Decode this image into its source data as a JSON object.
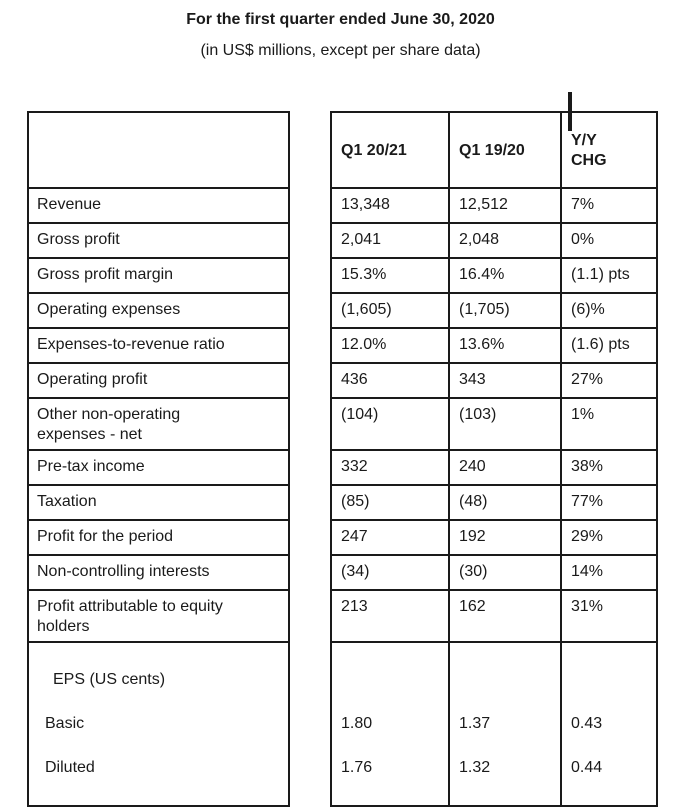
{
  "title": "For the first quarter ended June 30, 2020",
  "subtitle": "(in US$ millions, except per share data)",
  "table": {
    "column_headers": [
      "Q1 20/21",
      "Q1 19/20",
      "Y/Y\nCHG"
    ],
    "header_cursor_mark": "|",
    "rows": [
      {
        "label": "Revenue",
        "q1_2021": "13,348",
        "q1_1920": "12,512",
        "yy_chg": "7%"
      },
      {
        "label": "Gross profit",
        "q1_2021": "2,041",
        "q1_1920": "2,048",
        "yy_chg": "0%"
      },
      {
        "label": "Gross profit margin",
        "q1_2021": "15.3%",
        "q1_1920": "16.4%",
        "yy_chg": "(1.1) pts"
      },
      {
        "label": "Operating expenses",
        "q1_2021": "(1,605)",
        "q1_1920": "(1,705)",
        "yy_chg": "(6)%"
      },
      {
        "label": "Expenses-to-revenue ratio",
        "q1_2021": "12.0%",
        "q1_1920": "13.6%",
        "yy_chg": "(1.6) pts"
      },
      {
        "label": "Operating profit",
        "q1_2021": "436",
        "q1_1920": "343",
        "yy_chg": "27%"
      },
      {
        "label": "Other non-operating\nexpenses - net",
        "q1_2021": "(104)",
        "q1_1920": "(103)",
        "yy_chg": "1%"
      },
      {
        "label": "Pre-tax income",
        "q1_2021": "332",
        "q1_1920": "240",
        "yy_chg": "38%"
      },
      {
        "label": "Taxation",
        "q1_2021": "(85)",
        "q1_1920": "(48)",
        "yy_chg": "77%"
      },
      {
        "label": "Profit for the period",
        "q1_2021": "247",
        "q1_1920": "192",
        "yy_chg": "29%"
      },
      {
        "label": "Non-controlling interests",
        "q1_2021": "(34)",
        "q1_1920": "(30)",
        "yy_chg": "14%"
      },
      {
        "label": "Profit attributable to equity\nholders",
        "q1_2021": "213",
        "q1_1920": "162",
        "yy_chg": "31%"
      }
    ],
    "eps_section": {
      "heading": "EPS (US cents)",
      "rows": [
        {
          "label": "Basic",
          "q1_2021": "1.80",
          "q1_1920": "1.37",
          "yy_chg": "0.43"
        },
        {
          "label": "Diluted",
          "q1_2021": "1.76",
          "q1_1920": "1.32",
          "yy_chg": "0.44"
        }
      ]
    }
  }
}
